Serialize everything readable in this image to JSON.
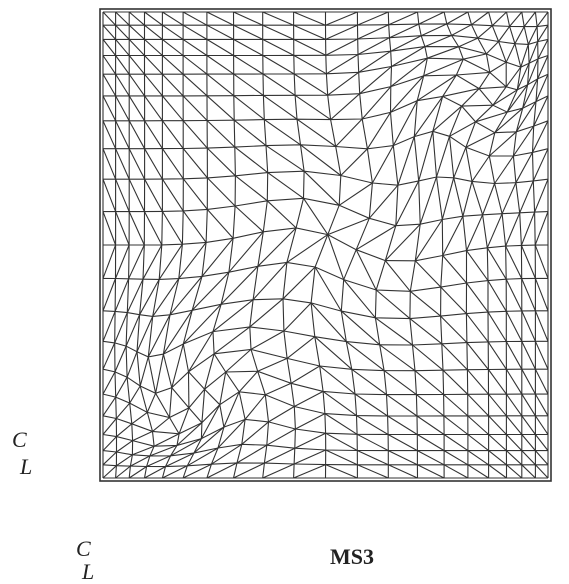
{
  "labels": {
    "side_marker": {
      "c": "C",
      "l": "L"
    },
    "bottom_marker": {
      "c": "C",
      "l": "L"
    },
    "caption": "MS3"
  }
}
